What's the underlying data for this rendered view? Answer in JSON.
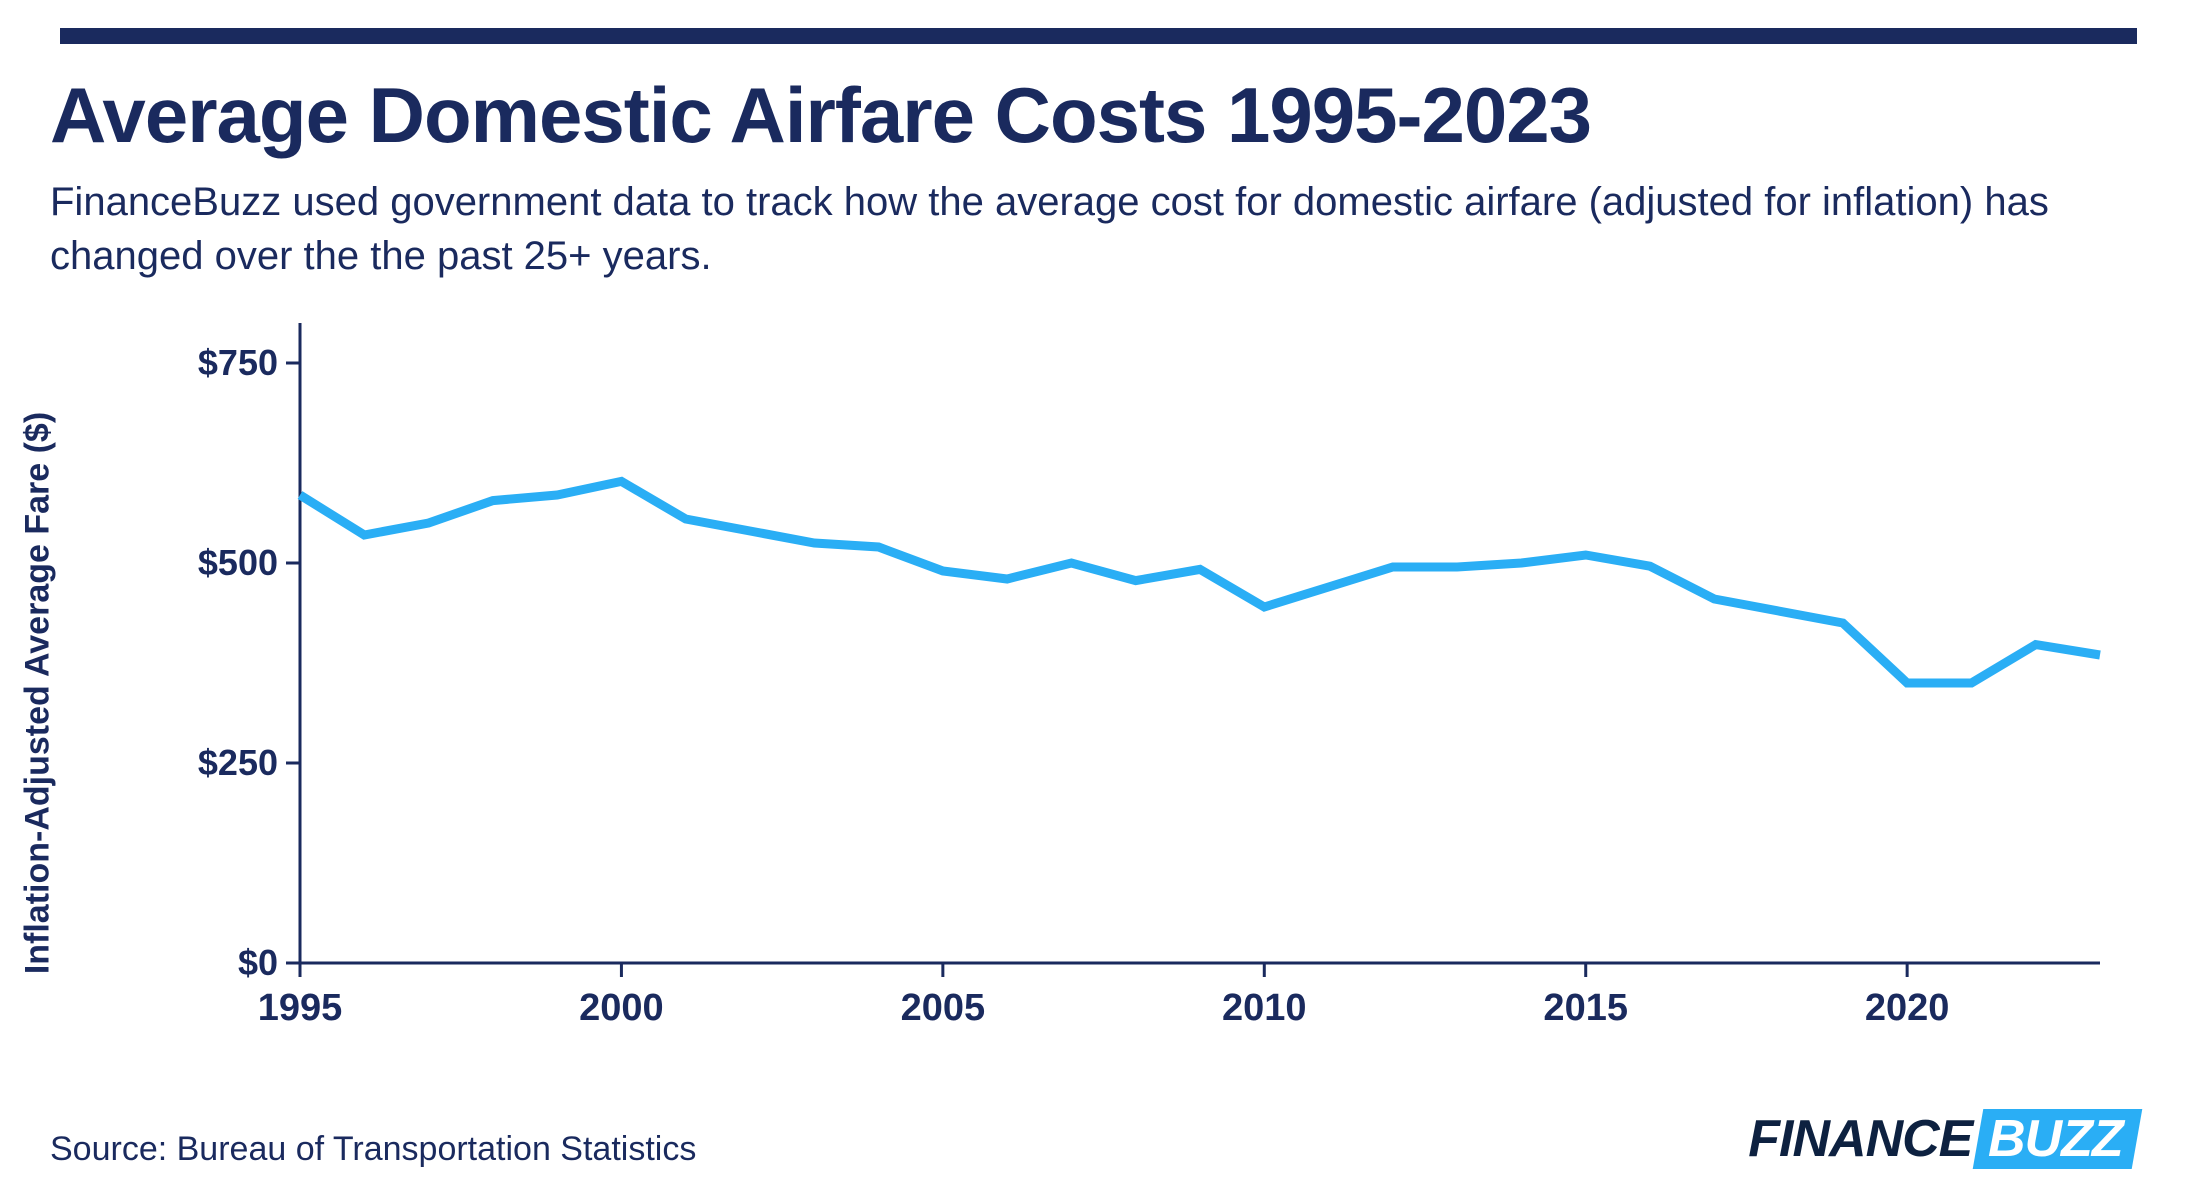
{
  "header": {
    "top_rule_color": "#1a2a5e",
    "title": "Average Domestic Airfare Costs 1995-2023",
    "subtitle": "FinanceBuzz used government data to track how the average cost for domestic airfare (adjusted for inflation) has changed over the the past 25+ years."
  },
  "chart": {
    "type": "line",
    "y_axis_label": "Inflation-Adjusted Average Fare ($)",
    "y_ticks": [
      0,
      250,
      500,
      750
    ],
    "y_tick_labels": [
      "$0",
      "$250",
      "$500",
      "$750"
    ],
    "ylim": [
      0,
      800
    ],
    "x_ticks": [
      1995,
      2000,
      2005,
      2010,
      2015,
      2020
    ],
    "x_tick_labels": [
      "1995",
      "2000",
      "2005",
      "2010",
      "2015",
      "2020"
    ],
    "xlim": [
      1995,
      2023
    ],
    "years": [
      1995,
      1996,
      1997,
      1998,
      1999,
      2000,
      2001,
      2002,
      2003,
      2004,
      2005,
      2006,
      2007,
      2008,
      2009,
      2010,
      2011,
      2012,
      2013,
      2014,
      2015,
      2016,
      2017,
      2018,
      2019,
      2020,
      2021,
      2022,
      2023
    ],
    "values": [
      585,
      535,
      550,
      578,
      585,
      602,
      555,
      540,
      525,
      520,
      490,
      480,
      500,
      478,
      492,
      445,
      470,
      495,
      495,
      500,
      510,
      496,
      455,
      440,
      425,
      350,
      350,
      398,
      385
    ],
    "line_color": "#2aaef5",
    "line_width": 9,
    "axis_color": "#1a2a5e",
    "axis_width": 3,
    "tick_length": 14,
    "background_color": "#ffffff",
    "label_fontsize": 34,
    "tick_fontsize": 36
  },
  "footer": {
    "source": "Source: Bureau of Transportation Statistics",
    "logo_finance": "FINANCE",
    "logo_buzz": "BUZZ",
    "logo_finance_color": "#0d2140",
    "logo_buzz_bg": "#2aaef5",
    "logo_buzz_fg": "#ffffff"
  }
}
